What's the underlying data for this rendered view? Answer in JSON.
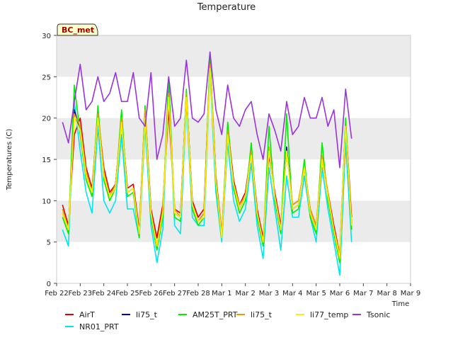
{
  "chart_data": {
    "type": "line",
    "title": "Temperature",
    "xlabel": "Time",
    "ylabel": "Temperatures (C)",
    "badge": "BC_met",
    "ylim": [
      0,
      30
    ],
    "yticks": [
      0,
      5,
      10,
      15,
      20,
      25,
      30
    ],
    "xlim": [
      0,
      15
    ],
    "xtick_labels": [
      "Feb 22",
      "Feb 23",
      "Feb 24",
      "Feb 25",
      "Feb 26",
      "Feb 27",
      "Feb 28",
      "Mar 1",
      "Mar 2",
      "Mar 3",
      "Mar 4",
      "Mar 5",
      "Mar 6",
      "Mar 7",
      "Mar 8",
      "Mar 9"
    ],
    "band_color": "#ebebeb",
    "x_step_days": 0.25,
    "x_start_day": 0.25,
    "series": [
      {
        "name": "AirT",
        "color": "#dd0000",
        "values": [
          9.5,
          7.0,
          18.0,
          20.0,
          14.0,
          11.5,
          20.5,
          14.0,
          11.0,
          12.0,
          20.0,
          11.5,
          12.0,
          6.5,
          21.0,
          9.0,
          5.5,
          9.5,
          21.0,
          9.0,
          8.5,
          23.0,
          10.0,
          8.0,
          9.0,
          27.0,
          13.0,
          6.0,
          19.0,
          12.5,
          9.5,
          11.0,
          16.0,
          9.0,
          5.5,
          15.5,
          11.0,
          7.0,
          16.0,
          9.5,
          10.0,
          14.0,
          9.0,
          7.0,
          15.0,
          11.0,
          7.0,
          3.5,
          19.5,
          8.0
        ]
      },
      {
        "name": "NR01_PRT",
        "color": "#00e5ee",
        "values": [
          6.5,
          4.5,
          22.0,
          16.0,
          11.0,
          8.5,
          19.0,
          10.0,
          8.5,
          10.0,
          18.0,
          9.0,
          9.0,
          5.5,
          19.0,
          7.0,
          2.5,
          6.5,
          24.0,
          7.0,
          6.0,
          22.0,
          8.0,
          7.0,
          7.0,
          25.5,
          11.0,
          5.0,
          17.0,
          10.0,
          7.5,
          9.0,
          14.5,
          7.0,
          3.0,
          14.0,
          9.0,
          4.0,
          13.0,
          8.0,
          8.0,
          13.0,
          8.0,
          5.0,
          14.0,
          9.0,
          5.0,
          1.0,
          17.0,
          5.0
        ]
      },
      {
        "name": "li75_t",
        "color": "#0000bb",
        "values": [
          8.5,
          6.5,
          21.0,
          18.5,
          13.0,
          11.0,
          20.0,
          13.0,
          10.5,
          12.0,
          19.5,
          11.0,
          11.5,
          6.0,
          20.5,
          8.5,
          4.5,
          8.5,
          23.5,
          8.5,
          8.0,
          23.0,
          9.5,
          7.5,
          8.5,
          26.5,
          12.5,
          5.5,
          18.5,
          12.0,
          9.0,
          10.5,
          15.5,
          8.5,
          5.0,
          16.0,
          10.5,
          6.5,
          16.5,
          9.0,
          9.5,
          14.0,
          8.5,
          6.5,
          15.0,
          10.5,
          6.5,
          3.0,
          19.0,
          7.0
        ]
      },
      {
        "name": "AM25T_PRT",
        "color": "#00ee00",
        "values": [
          8.0,
          6.0,
          24.0,
          18.0,
          12.5,
          10.5,
          21.5,
          12.5,
          10.0,
          11.5,
          21.0,
          10.5,
          11.0,
          5.5,
          21.5,
          8.0,
          4.0,
          8.0,
          25.0,
          8.0,
          7.5,
          23.5,
          9.0,
          7.0,
          8.0,
          27.5,
          12.0,
          5.5,
          19.5,
          11.5,
          8.5,
          10.0,
          17.0,
          8.0,
          4.5,
          19.0,
          10.0,
          6.0,
          20.5,
          8.5,
          9.0,
          15.0,
          8.0,
          6.0,
          17.0,
          10.0,
          6.0,
          2.5,
          20.0,
          6.5
        ]
      },
      {
        "name": "li75_t",
        "color": "#e8a000",
        "values": [
          9.0,
          6.5,
          20.5,
          19.0,
          13.5,
          11.0,
          20.5,
          13.5,
          10.5,
          12.0,
          20.0,
          11.0,
          11.5,
          6.0,
          21.0,
          8.5,
          4.5,
          9.0,
          23.0,
          9.0,
          8.0,
          23.0,
          9.5,
          7.5,
          8.5,
          26.5,
          12.5,
          6.0,
          18.5,
          12.0,
          9.5,
          10.5,
          16.0,
          8.5,
          5.0,
          16.5,
          10.5,
          6.5,
          16.0,
          9.5,
          10.0,
          14.0,
          9.0,
          7.0,
          15.5,
          11.0,
          6.5,
          3.5,
          19.0,
          7.5
        ]
      },
      {
        "name": "li77_temp",
        "color": "#ffee00",
        "values": [
          8.5,
          6.5,
          20.0,
          18.5,
          13.0,
          11.0,
          20.0,
          13.0,
          10.5,
          11.5,
          19.5,
          11.0,
          11.5,
          6.0,
          20.0,
          8.5,
          4.5,
          8.5,
          22.5,
          8.5,
          8.0,
          22.5,
          9.5,
          7.5,
          8.0,
          26.0,
          12.5,
          5.5,
          18.0,
          12.0,
          9.0,
          10.5,
          15.5,
          8.5,
          5.0,
          16.0,
          10.5,
          6.5,
          16.0,
          9.0,
          9.5,
          14.0,
          8.5,
          6.5,
          15.0,
          10.5,
          6.5,
          3.0,
          19.0,
          7.0
        ]
      },
      {
        "name": "Tsonic",
        "color": "#9933dd",
        "values": [
          19.5,
          17.0,
          22.0,
          26.5,
          21.0,
          22.0,
          25.0,
          22.0,
          23.0,
          25.5,
          22.0,
          22.0,
          25.5,
          20.0,
          19.0,
          25.5,
          15.0,
          18.0,
          25.0,
          19.0,
          20.0,
          27.0,
          20.0,
          19.5,
          20.5,
          28.0,
          21.0,
          18.0,
          24.0,
          20.0,
          19.0,
          21.0,
          22.0,
          18.0,
          15.0,
          20.5,
          18.5,
          16.0,
          22.0,
          18.0,
          19.0,
          22.5,
          20.0,
          20.0,
          22.5,
          19.0,
          21.0,
          14.0,
          23.5,
          17.5
        ]
      }
    ],
    "legend_placement": "bottom",
    "grid": false
  }
}
